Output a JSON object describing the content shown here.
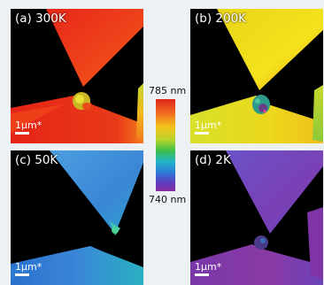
{
  "panels": [
    {
      "label": "(a) 300K",
      "scale": "1μm*"
    },
    {
      "label": "(b) 200K",
      "scale": "1μm*"
    },
    {
      "label": "(c) 50K",
      "scale": "1μm*"
    },
    {
      "label": "(d) 2K",
      "scale": "1μm*"
    }
  ],
  "colorbar": {
    "top_label": "785 nm",
    "bottom_label": "740 nm",
    "colors": [
      "#e0261c",
      "#f4c21a",
      "#3fbf4a",
      "#2e78d8",
      "#8a2ca0"
    ]
  }
}
